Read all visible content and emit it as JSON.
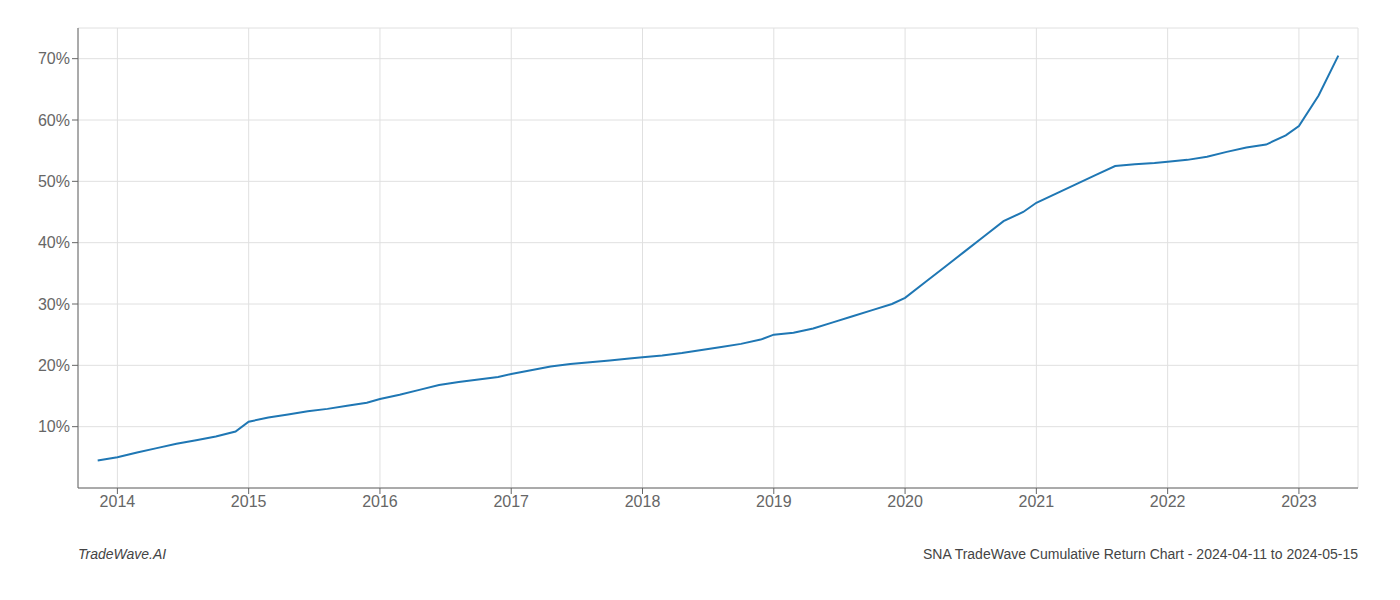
{
  "chart_data": {
    "type": "line",
    "annotations": [
      "TradeWave.AI",
      "SNA TradeWave Cumulative Return Chart - 2024-04-11 to 2024-05-15"
    ],
    "color": "#1f77b4",
    "grid": true,
    "x": [
      2013.85,
      2014.0,
      2014.15,
      2014.3,
      2014.45,
      2014.6,
      2014.75,
      2014.9,
      2015.0,
      2015.15,
      2015.3,
      2015.45,
      2015.6,
      2015.75,
      2015.9,
      2016.0,
      2016.15,
      2016.3,
      2016.45,
      2016.6,
      2016.75,
      2016.9,
      2017.0,
      2017.15,
      2017.3,
      2017.45,
      2017.6,
      2017.75,
      2017.9,
      2018.0,
      2018.15,
      2018.3,
      2018.45,
      2018.6,
      2018.75,
      2018.9,
      2019.0,
      2019.15,
      2019.3,
      2019.45,
      2019.6,
      2019.75,
      2019.9,
      2020.0,
      2020.15,
      2020.3,
      2020.45,
      2020.6,
      2020.75,
      2020.9,
      2021.0,
      2021.15,
      2021.3,
      2021.45,
      2021.6,
      2021.75,
      2021.9,
      2022.0,
      2022.15,
      2022.3,
      2022.45,
      2022.6,
      2022.75,
      2022.9,
      2023.0,
      2023.15,
      2023.3
    ],
    "values": [
      4.5,
      5.0,
      5.8,
      6.5,
      7.2,
      7.8,
      8.4,
      9.2,
      10.8,
      11.5,
      12.0,
      12.5,
      12.9,
      13.4,
      13.9,
      14.5,
      15.2,
      16.0,
      16.8,
      17.3,
      17.7,
      18.1,
      18.6,
      19.2,
      19.8,
      20.2,
      20.5,
      20.8,
      21.1,
      21.3,
      21.6,
      22.0,
      22.5,
      23.0,
      23.5,
      24.2,
      25.0,
      25.3,
      26.0,
      27.0,
      28.0,
      29.0,
      30.0,
      31.0,
      33.5,
      36.0,
      38.5,
      41.0,
      43.5,
      45.0,
      46.5,
      48.0,
      49.5,
      51.0,
      52.5,
      52.8,
      53.0,
      53.2,
      53.5,
      54.0,
      54.8,
      55.5,
      56.0,
      57.5,
      59.0,
      64.0,
      70.5
    ],
    "xlim": [
      2013.7,
      2023.45
    ],
    "xticks": [
      2014,
      2015,
      2016,
      2017,
      2018,
      2019,
      2020,
      2021,
      2022,
      2023
    ],
    "ylim": [
      0,
      75
    ],
    "yticks": [
      {
        "value": 10,
        "label": "10%"
      },
      {
        "value": 20,
        "label": "20%"
      },
      {
        "value": 30,
        "label": "30%"
      },
      {
        "value": 40,
        "label": "40%"
      },
      {
        "value": 50,
        "label": "50%"
      },
      {
        "value": 60,
        "label": "60%"
      },
      {
        "value": 70,
        "label": "70%"
      }
    ]
  }
}
